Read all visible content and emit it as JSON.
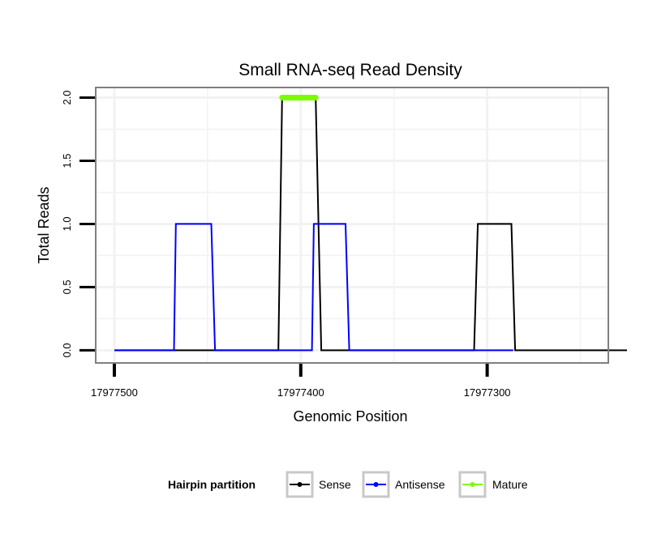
{
  "chart_data": {
    "type": "line",
    "title": "Small RNA-seq Read Density",
    "xlabel": "Genomic Position",
    "ylabel": "Total Reads",
    "xlim": [
      17977510,
      17977235
    ],
    "ylim": [
      -0.1,
      2.08
    ],
    "x_reversed": true,
    "x_ticks": [
      17977500,
      17977400,
      17977300
    ],
    "x_tick_labels": [
      "17977500",
      "17977400",
      "17977300"
    ],
    "y_ticks": [
      0,
      0.5,
      1,
      1.5,
      2
    ],
    "y_tick_labels": [
      "0.0",
      "0.5",
      "1.0",
      "1.5",
      "2.0"
    ],
    "grid": true,
    "legend": {
      "title": "Hairpin partition",
      "position": "bottom",
      "entries": [
        "Sense",
        "Antisense",
        "Mature"
      ]
    },
    "series": [
      {
        "name": "Sense",
        "color": "#000000",
        "x": [
          17977500,
          17977412,
          17977410,
          17977392,
          17977389,
          17977307,
          17977305,
          17977287,
          17977285,
          17977225
        ],
        "values": [
          0,
          0,
          2,
          2,
          0,
          0,
          1,
          1,
          0,
          0
        ]
      },
      {
        "name": "Antisense",
        "color": "#0000ff",
        "x": [
          17977500,
          17977468,
          17977467,
          17977448,
          17977446,
          17977394,
          17977393,
          17977376,
          17977374,
          17977306,
          17977305,
          17977286
        ],
        "values": [
          0,
          0,
          1,
          1,
          0,
          0,
          1,
          1,
          0,
          0,
          0,
          0
        ]
      },
      {
        "name": "Mature",
        "color": "#7cfc00",
        "x": [
          17977410,
          17977392
        ],
        "values": [
          2,
          2
        ]
      }
    ]
  }
}
